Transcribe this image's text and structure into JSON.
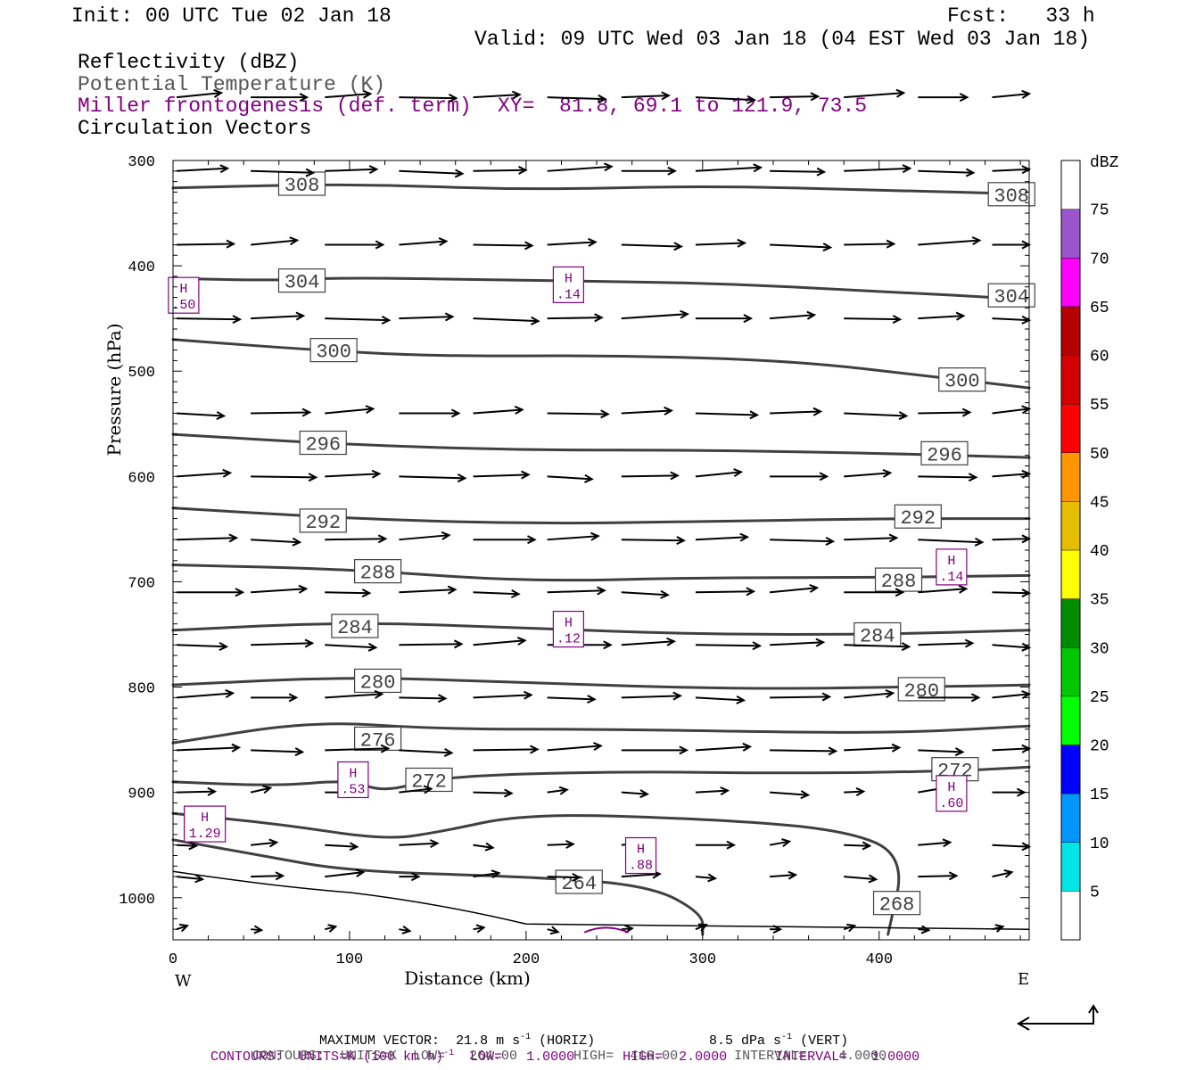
{
  "header": {
    "init": "Init: 00 UTC Tue 02 Jan 18",
    "fcst": "Fcst:   33 h",
    "valid": "Valid: 09 UTC Wed 03 Jan 18 (04 EST Wed 03 Jan 18)",
    "field1": "Reflectivity (dBZ)",
    "field2": "Potential Temperature (K)",
    "field3": "Miller frontogenesis (def. term)",
    "xy": "XY=  81.8, 69.1 to 121.9, 73.5",
    "field4": "Circulation Vectors"
  },
  "footer": {
    "max_vector_label": "MAXIMUM VECTOR:",
    "max_vector_horiz": "21.8 m s",
    "horiz_unit": "(HORIZ)",
    "max_vector_vert": "8.5 dPa s",
    "vert_unit": "(VERT)",
    "exponent": "-1",
    "contours1_prefix": "CONTOURS:  UNITS=K (100 km h)",
    "contours1_suffix": "  LOW=   1.0000      HIGH=  2.0000      INTERVAL=   1.0000",
    "contours2": "CONTOURS:  UNITS=K  LOW=   264.00       HIGH=  416.00       INTERVAL=    4.0000"
  },
  "colors": {
    "theta": "#404040",
    "frontogenesis": "#800080",
    "vectors": "#000000"
  },
  "chart_data": {
    "type": "cross-section",
    "xlabel": "Distance (km)",
    "ylabel": "Pressure (hPa)",
    "xlim": [
      0,
      485
    ],
    "ylim": [
      1040,
      300
    ],
    "xticks": [
      0,
      100,
      200,
      300,
      400
    ],
    "yticks": [
      300,
      400,
      500,
      600,
      700,
      800,
      900,
      1000
    ],
    "left_end": "W",
    "right_end": "E",
    "colorbar": {
      "title": "dBZ",
      "labels": [
        "5",
        "10",
        "15",
        "20",
        "25",
        "30",
        "35",
        "40",
        "45",
        "50",
        "55",
        "60",
        "65",
        "70",
        "75"
      ],
      "colors": [
        "#ffffff",
        "#00e5e5",
        "#0096ff",
        "#0000ff",
        "#00ff00",
        "#00c800",
        "#008c00",
        "#ffff00",
        "#e6be00",
        "#ff9600",
        "#ff0000",
        "#d20000",
        "#b40000",
        "#ff00ff",
        "#9955cc",
        "#ffffff"
      ]
    },
    "theta_contours": [
      {
        "level": 308,
        "label_pos": [
          [
            73,
            322
          ],
          [
            475,
            332
          ]
        ],
        "points": [
          [
            0,
            326
          ],
          [
            100,
            322
          ],
          [
            200,
            328
          ],
          [
            300,
            324
          ],
          [
            400,
            328
          ],
          [
            485,
            332
          ]
        ]
      },
      {
        "level": 304,
        "label_pos": [
          [
            73,
            414
          ],
          [
            475,
            428
          ]
        ],
        "points": [
          [
            0,
            412
          ],
          [
            60,
            414
          ],
          [
            100,
            411
          ],
          [
            200,
            414
          ],
          [
            300,
            416
          ],
          [
            400,
            424
          ],
          [
            485,
            432
          ]
        ]
      },
      {
        "level": 300,
        "label_pos": [
          [
            91,
            480
          ],
          [
            447,
            508
          ]
        ],
        "points": [
          [
            0,
            470
          ],
          [
            80,
            480
          ],
          [
            150,
            486
          ],
          [
            250,
            485
          ],
          [
            350,
            490
          ],
          [
            430,
            505
          ],
          [
            485,
            516
          ]
        ]
      },
      {
        "level": 296,
        "label_pos": [
          [
            85,
            568
          ],
          [
            437,
            578
          ]
        ],
        "points": [
          [
            0,
            560
          ],
          [
            100,
            570
          ],
          [
            200,
            575
          ],
          [
            300,
            575
          ],
          [
            400,
            578
          ],
          [
            485,
            582
          ]
        ]
      },
      {
        "level": 292,
        "label_pos": [
          [
            85,
            642
          ],
          [
            422,
            638
          ]
        ],
        "points": [
          [
            0,
            630
          ],
          [
            100,
            640
          ],
          [
            200,
            645
          ],
          [
            300,
            643
          ],
          [
            400,
            640
          ],
          [
            485,
            640
          ]
        ]
      },
      {
        "level": 288,
        "label_pos": [
          [
            116,
            690
          ],
          [
            411,
            698
          ]
        ],
        "points": [
          [
            0,
            684
          ],
          [
            100,
            688
          ],
          [
            200,
            700
          ],
          [
            300,
            696
          ],
          [
            400,
            696
          ],
          [
            485,
            694
          ]
        ]
      },
      {
        "level": 284,
        "label_pos": [
          [
            103,
            742
          ],
          [
            399,
            750
          ]
        ],
        "points": [
          [
            0,
            746
          ],
          [
            100,
            738
          ],
          [
            200,
            744
          ],
          [
            300,
            750
          ],
          [
            400,
            750
          ],
          [
            485,
            746
          ]
        ]
      },
      {
        "level": 280,
        "label_pos": [
          [
            116,
            794
          ],
          [
            424,
            802
          ]
        ],
        "points": [
          [
            0,
            798
          ],
          [
            100,
            790
          ],
          [
            200,
            796
          ],
          [
            320,
            802
          ],
          [
            420,
            800
          ],
          [
            485,
            798
          ]
        ]
      },
      {
        "level": 276,
        "label_pos": [
          [
            116,
            849
          ],
          [
            485,
            0
          ]
        ],
        "points": [
          [
            0,
            853
          ],
          [
            80,
            832
          ],
          [
            150,
            840
          ],
          [
            250,
            840
          ],
          [
            350,
            843
          ],
          [
            420,
            843
          ],
          [
            485,
            837
          ]
        ]
      },
      {
        "level": 272,
        "label_pos": [
          [
            145,
            888
          ],
          [
            443,
            878
          ]
        ],
        "points": [
          [
            0,
            890
          ],
          [
            60,
            894
          ],
          [
            100,
            888
          ],
          [
            120,
            900
          ],
          [
            150,
            885
          ],
          [
            250,
            880
          ],
          [
            350,
            882
          ],
          [
            440,
            880
          ],
          [
            485,
            876
          ]
        ]
      },
      {
        "level": 268,
        "label_pos": [
          [
            410,
            1005
          ]
        ],
        "points": [
          [
            0,
            920
          ],
          [
            60,
            930
          ],
          [
            120,
            945
          ],
          [
            150,
            938
          ],
          [
            200,
            920
          ],
          [
            300,
            925
          ],
          [
            380,
            935
          ],
          [
            415,
            960
          ],
          [
            405,
            1035
          ]
        ]
      },
      {
        "level": 264,
        "label_pos": [
          [
            230,
            985
          ]
        ],
        "points": [
          [
            0,
            945
          ],
          [
            50,
            960
          ],
          [
            100,
            975
          ],
          [
            200,
            980
          ],
          [
            270,
            988
          ],
          [
            300,
            1015
          ],
          [
            300,
            1035
          ]
        ]
      }
    ],
    "frontogenesis_maxima": [
      {
        "label": "H",
        "value": ".50",
        "x": 6,
        "p": 428
      },
      {
        "label": "H",
        "value": ".14",
        "x": 224,
        "p": 418
      },
      {
        "label": "H",
        "value": ".14",
        "x": 441,
        "p": 686
      },
      {
        "label": "H",
        "value": ".12",
        "x": 224,
        "p": 745
      },
      {
        "label": "H",
        "value": ".53",
        "x": 102,
        "p": 888
      },
      {
        "label": "H",
        "value": ".60",
        "x": 441,
        "p": 901
      },
      {
        "label": "H",
        "value": "1.29",
        "x": 18,
        "p": 930
      },
      {
        "label": "H",
        "value": ".88",
        "x": 265,
        "p": 960
      }
    ]
  }
}
